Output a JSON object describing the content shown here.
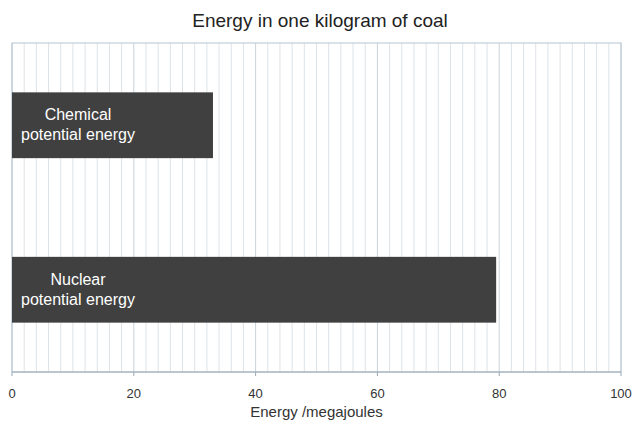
{
  "chart_data": {
    "type": "bar",
    "title": "Energy in one kilogram of coal",
    "categories": [
      "Chemical potential energy",
      "Nuclear potential energy"
    ],
    "values": [
      33,
      79.5
    ],
    "color": "#404040",
    "orientation": "horizontal",
    "x_label": "Energy /megajoules",
    "xlim": [
      0,
      100
    ],
    "xticks": [
      0,
      20,
      40,
      60,
      80,
      100
    ],
    "grid": true
  }
}
